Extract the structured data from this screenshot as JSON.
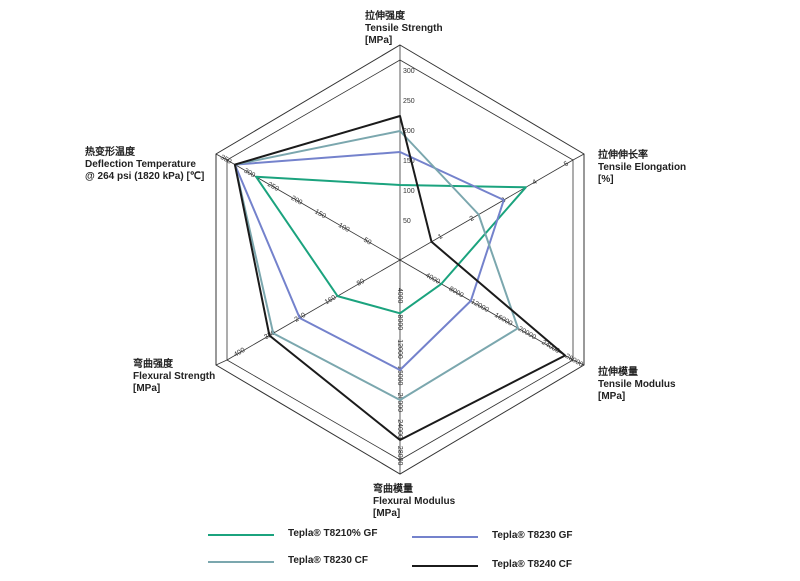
{
  "chart_data": {
    "type": "radar",
    "axes": [
      {
        "lines": [
          "拉伸强度",
          "Tensile Strength",
          "[MPa]"
        ],
        "ticks": [
          "50",
          "100",
          "150",
          "200",
          "250",
          "300"
        ],
        "max": 333.3
      },
      {
        "lines": [
          "拉伸伸长率",
          "Tensile Elongation",
          "[%]"
        ],
        "ticks": [
          "1",
          "2",
          "3",
          "4",
          "5"
        ],
        "max": 5.5
      },
      {
        "lines": [
          "拉伸模量",
          "Tensile Modulus",
          "[MPa]"
        ],
        "ticks": [
          "4000",
          "8000",
          "12000",
          "16000",
          "20000",
          "24000",
          "28000"
        ],
        "max": 29333
      },
      {
        "lines": [
          "弯曲模量",
          "Flexural Modulus",
          "[MPa]"
        ],
        "ticks": [
          "4000",
          "8000",
          "12000",
          "16000",
          "20000",
          "24000",
          "28000"
        ],
        "max": 30000
      },
      {
        "lines": [
          "弯曲强度",
          "Flexural Strength",
          "[MPa]"
        ],
        "ticks": [
          "80",
          "160",
          "240",
          "320",
          "400"
        ],
        "max": 457
      },
      {
        "lines": [
          "热变形温度",
          "Deflection Temperature",
          "@ 264 psi (1820 kPa) [℃]"
        ],
        "ticks": [
          "50",
          "100",
          "150",
          "200",
          "250",
          "300",
          "350"
        ],
        "max": 366.7
      }
    ],
    "series": [
      {
        "name": "Tepla® T8210% GF",
        "color": "#1ba37e",
        "values": [
          125,
          4.0,
          7000,
          8000,
          165,
          305
        ]
      },
      {
        "name": "Tepla® T8230 GF",
        "color": "#7482cc",
        "values": [
          180,
          3.3,
          12000,
          16500,
          265,
          350
        ]
      },
      {
        "name": "Tepla® T8230 CF",
        "color": "#7ba7ae",
        "values": [
          215,
          2.5,
          20000,
          21000,
          335,
          350
        ]
      },
      {
        "name": "Tepla® T8240 CF",
        "color": "#1b1b1b",
        "values": [
          240,
          1.0,
          28000,
          27000,
          345,
          350
        ]
      }
    ]
  }
}
